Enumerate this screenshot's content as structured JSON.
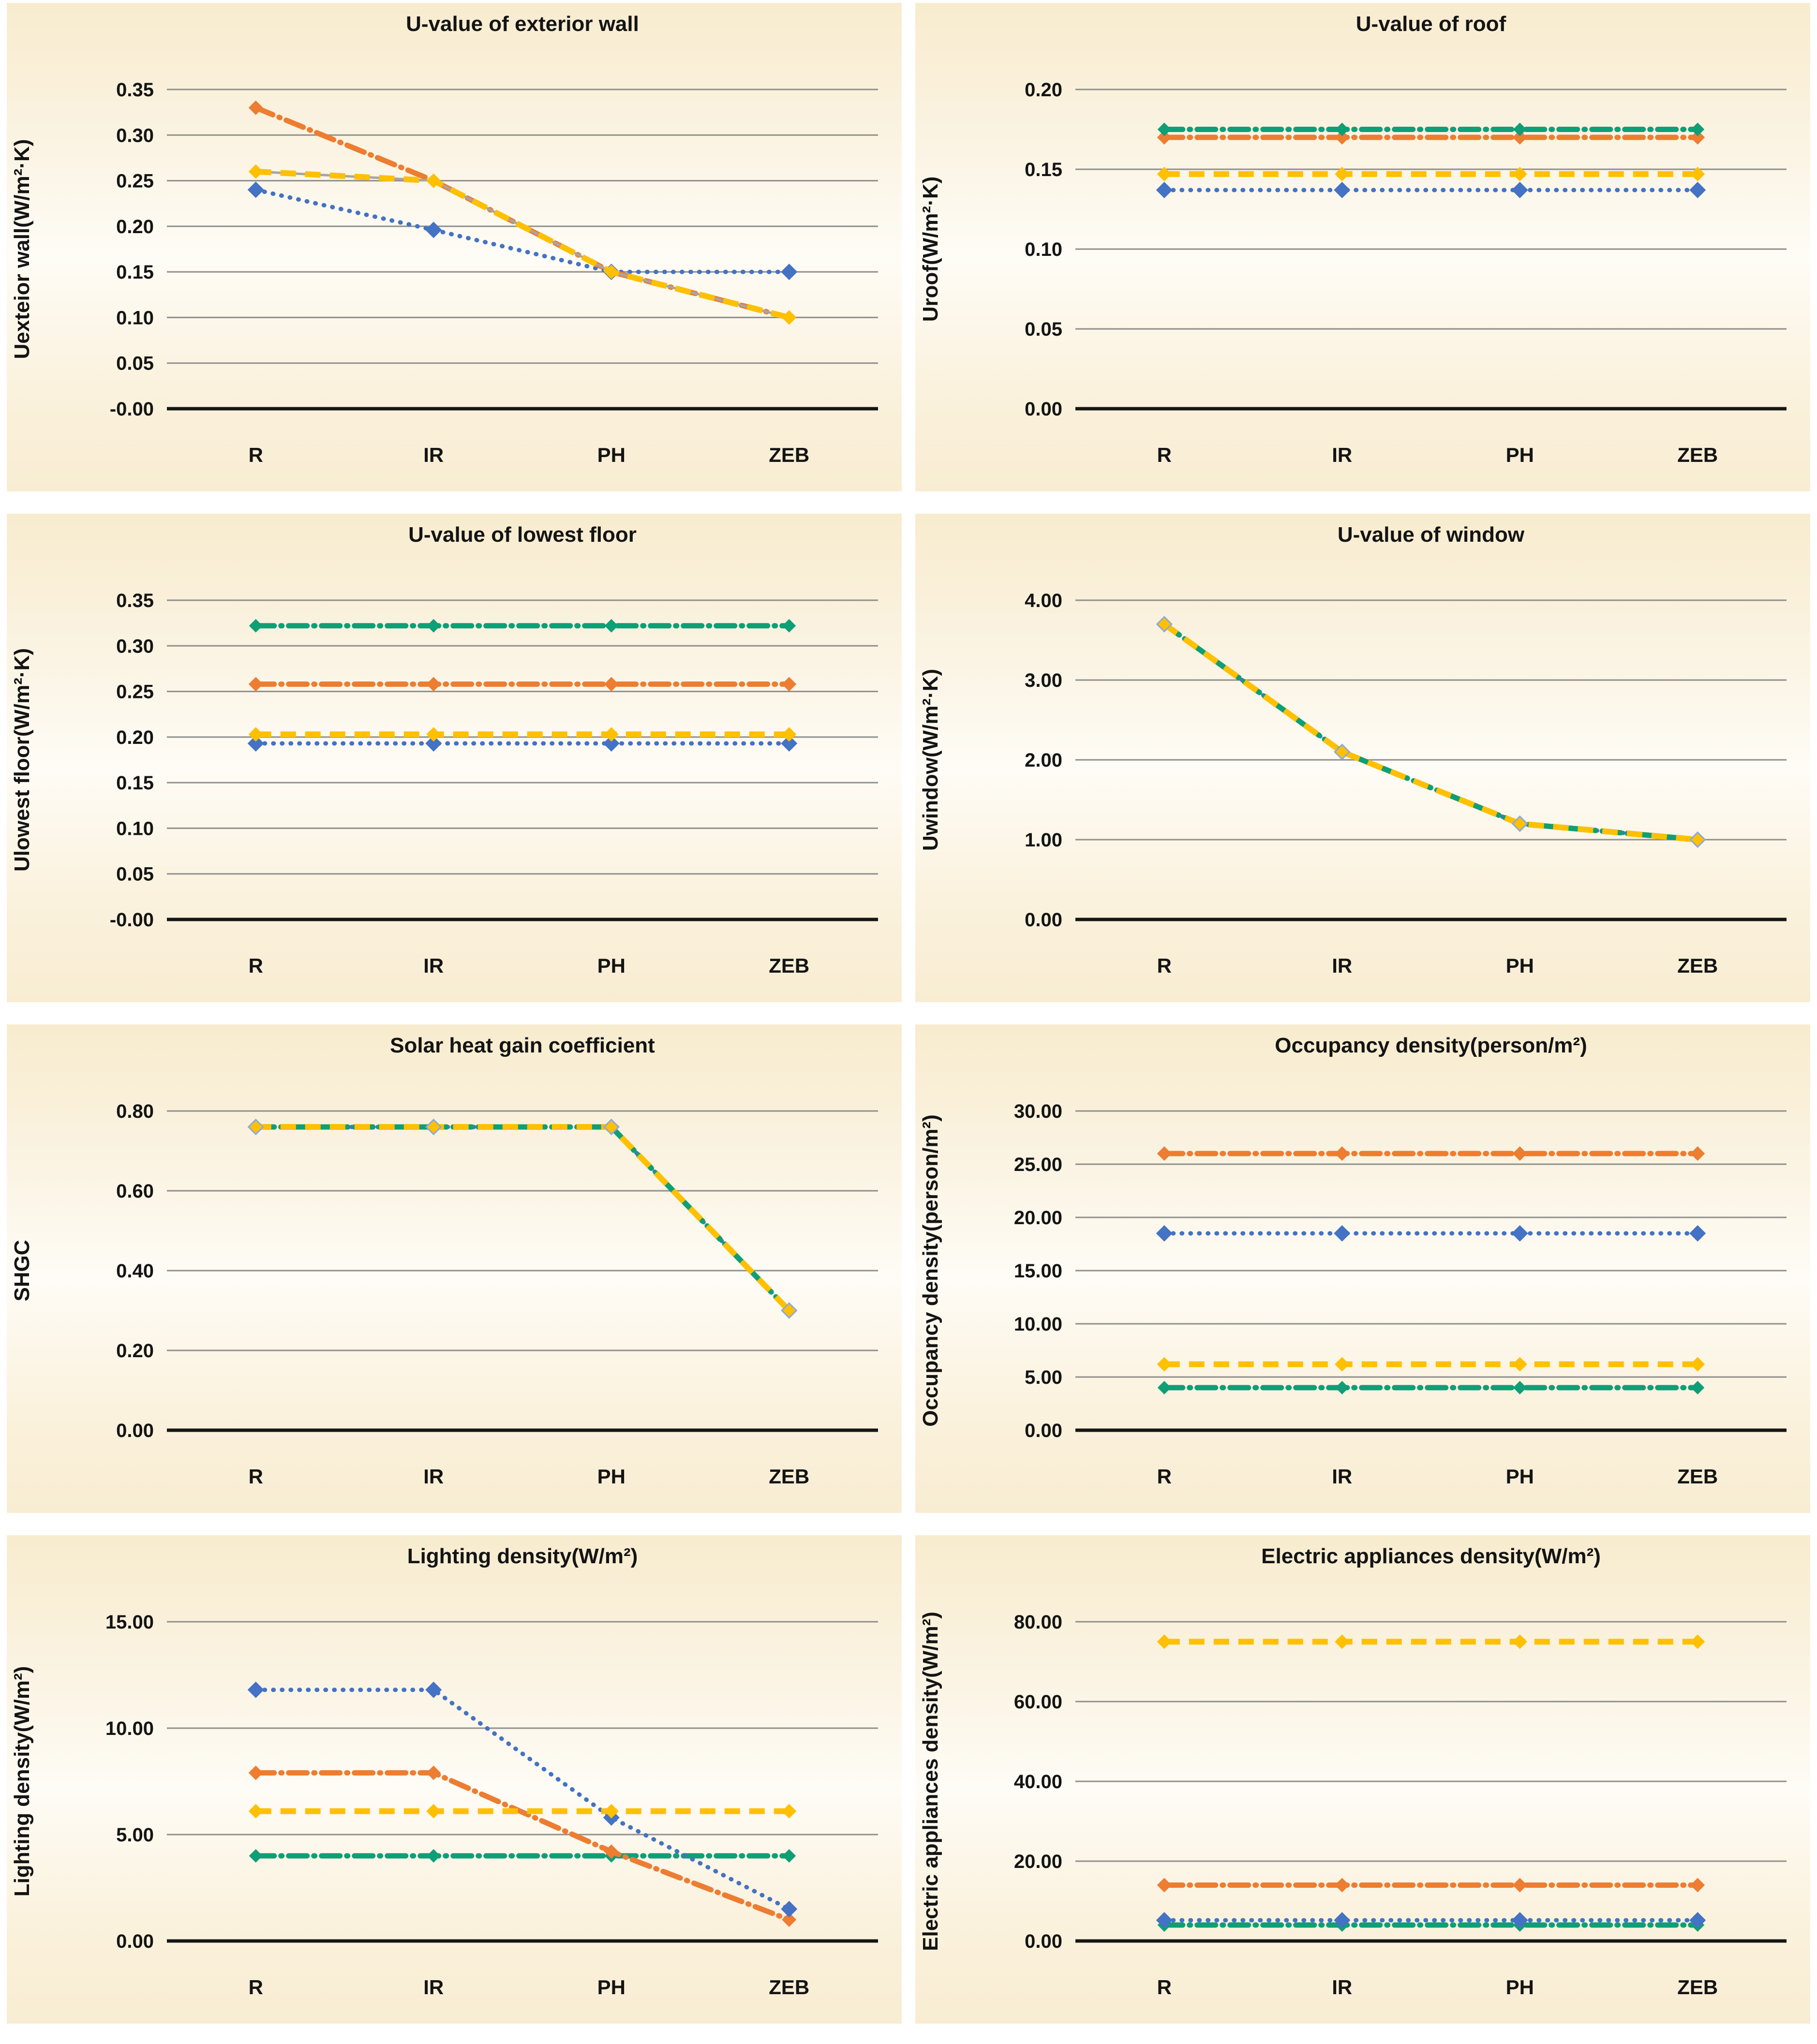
{
  "figure_background": "#FFFFFF",
  "panel_background_gradient": [
    "#F8ECCE",
    "#FBF4E4",
    "#FEFCF6",
    "#FBF2DE",
    "#F8EDD2"
  ],
  "gridline_color": "#8F8F8B",
  "axis_color": "#151515",
  "text_color": "#141414",
  "series_colors": {
    "blue": "#4472C4",
    "orange": "#ED7D31",
    "gray": "#A6A6A6",
    "yellow": "#FFC000",
    "green": "#0E9F76"
  },
  "chart_data": [
    {
      "type": "line",
      "title": "U-value of exterior wall",
      "ylabel": "Uexteior wall(W/m²·K)",
      "xlabel": "",
      "categories": [
        "R",
        "IR",
        "PH",
        "ZEB"
      ],
      "ylim": [
        0,
        0.35
      ],
      "y_step": 0.05,
      "grid": true,
      "legend_position": "none",
      "series": [
        {
          "name": "blue",
          "color": "#4472C4",
          "dash": "dot",
          "values": [
            0.24,
            0.196,
            0.15,
            0.15
          ]
        },
        {
          "name": "orange",
          "color": "#ED7D31",
          "dash": "dashdot",
          "values": [
            0.33,
            0.25,
            0.15,
            0.1
          ]
        },
        {
          "name": "gray",
          "color": "#A6A6A6",
          "dash": "solid",
          "values": [
            0.26,
            0.25,
            0.15,
            0.1
          ]
        },
        {
          "name": "yellow",
          "color": "#FFC000",
          "dash": "dash",
          "values": [
            0.26,
            0.25,
            0.15,
            0.1
          ]
        }
      ]
    },
    {
      "type": "line",
      "title": "U-value of roof",
      "ylabel": "Uroof(W/m²·K)",
      "xlabel": "",
      "categories": [
        "R",
        "IR",
        "PH",
        "ZEB"
      ],
      "ylim": [
        0,
        0.2
      ],
      "y_step": 0.05,
      "grid": true,
      "legend_position": "none",
      "series": [
        {
          "name": "blue",
          "color": "#4472C4",
          "dash": "dot",
          "values": [
            0.137,
            0.137,
            0.137,
            0.137
          ]
        },
        {
          "name": "yellow",
          "color": "#FFC000",
          "dash": "dash",
          "values": [
            0.147,
            0.147,
            0.147,
            0.147
          ]
        },
        {
          "name": "orange",
          "color": "#ED7D31",
          "dash": "dashdot",
          "values": [
            0.17,
            0.17,
            0.17,
            0.17
          ]
        },
        {
          "name": "green",
          "color": "#0E9F76",
          "dash": "dashdot",
          "values": [
            0.175,
            0.175,
            0.175,
            0.175
          ]
        }
      ]
    },
    {
      "type": "line",
      "title": "U-value of lowest floor",
      "ylabel": "Ulowest floor(W/m²·K)",
      "xlabel": "",
      "categories": [
        "R",
        "IR",
        "PH",
        "ZEB"
      ],
      "ylim": [
        0,
        0.35
      ],
      "y_step": 0.05,
      "grid": true,
      "legend_position": "none",
      "series": [
        {
          "name": "blue",
          "color": "#4472C4",
          "dash": "dot",
          "values": [
            0.193,
            0.193,
            0.193,
            0.193
          ]
        },
        {
          "name": "yellow",
          "color": "#FFC000",
          "dash": "dash",
          "values": [
            0.203,
            0.203,
            0.203,
            0.203
          ]
        },
        {
          "name": "orange",
          "color": "#ED7D31",
          "dash": "dashdot",
          "values": [
            0.258,
            0.258,
            0.258,
            0.258
          ]
        },
        {
          "name": "green",
          "color": "#0E9F76",
          "dash": "dashdot",
          "values": [
            0.322,
            0.322,
            0.322,
            0.322
          ]
        }
      ]
    },
    {
      "type": "line",
      "title": "U-value of window",
      "ylabel": "Uwindow(W/m²·K)",
      "xlabel": "",
      "categories": [
        "R",
        "IR",
        "PH",
        "ZEB"
      ],
      "ylim": [
        0,
        4.0
      ],
      "y_step": 1.0,
      "grid": true,
      "legend_position": "none",
      "series": [
        {
          "name": "blue",
          "color": "#4472C4",
          "dash": "dot",
          "values": [
            3.7,
            2.1,
            1.2,
            1.0
          ]
        },
        {
          "name": "orange",
          "color": "#ED7D31",
          "dash": "dashdot",
          "values": [
            3.7,
            2.1,
            1.2,
            1.0
          ]
        },
        {
          "name": "green",
          "color": "#0E9F76",
          "dash": "dashdot",
          "values": [
            3.7,
            2.1,
            1.2,
            1.0
          ]
        },
        {
          "name": "yellow",
          "color": "#FFC000",
          "dash": "dash",
          "values": [
            3.7,
            2.1,
            1.2,
            1.0
          ],
          "marker_outline": "#8EA9DB"
        }
      ]
    },
    {
      "type": "line",
      "title": "Solar heat gain coefficient",
      "ylabel": "SHGC",
      "xlabel": "",
      "categories": [
        "R",
        "IR",
        "PH",
        "ZEB"
      ],
      "ylim": [
        0,
        0.8
      ],
      "y_step": 0.2,
      "grid": true,
      "legend_position": "none",
      "series": [
        {
          "name": "blue",
          "color": "#4472C4",
          "dash": "dot",
          "values": [
            0.76,
            0.76,
            0.76,
            0.3
          ]
        },
        {
          "name": "orange",
          "color": "#ED7D31",
          "dash": "dashdot",
          "values": [
            0.76,
            0.76,
            0.76,
            0.3
          ]
        },
        {
          "name": "green",
          "color": "#0E9F76",
          "dash": "dashdot",
          "values": [
            0.76,
            0.76,
            0.76,
            0.3
          ]
        },
        {
          "name": "yellow",
          "color": "#FFC000",
          "dash": "dash",
          "values": [
            0.76,
            0.76,
            0.76,
            0.3
          ],
          "marker_outline": "#8EA9DB"
        }
      ]
    },
    {
      "type": "line",
      "title": "Occupancy density(person/m²)",
      "ylabel": "Occupancy density(person/m²)",
      "xlabel": "",
      "categories": [
        "R",
        "IR",
        "PH",
        "ZEB"
      ],
      "ylim": [
        0,
        30.0
      ],
      "y_step": 5.0,
      "grid": true,
      "legend_position": "none",
      "series": [
        {
          "name": "green",
          "color": "#0E9F76",
          "dash": "dashdot",
          "values": [
            4.0,
            4.0,
            4.0,
            4.0
          ]
        },
        {
          "name": "yellow",
          "color": "#FFC000",
          "dash": "dash",
          "values": [
            6.2,
            6.2,
            6.2,
            6.2
          ]
        },
        {
          "name": "blue",
          "color": "#4472C4",
          "dash": "dot",
          "values": [
            18.5,
            18.5,
            18.5,
            18.5
          ]
        },
        {
          "name": "orange",
          "color": "#ED7D31",
          "dash": "dashdot",
          "values": [
            26.0,
            26.0,
            26.0,
            26.0
          ]
        }
      ]
    },
    {
      "type": "line",
      "title": "Lighting density(W/m²)",
      "ylabel": "Lighting density(W/m²)",
      "xlabel": "",
      "categories": [
        "R",
        "IR",
        "PH",
        "ZEB"
      ],
      "ylim": [
        0,
        15.0
      ],
      "y_step": 5.0,
      "grid": true,
      "legend_position": "none",
      "series": [
        {
          "name": "green",
          "color": "#0E9F76",
          "dash": "dashdot",
          "values": [
            4.0,
            4.0,
            4.0,
            4.0
          ]
        },
        {
          "name": "orange",
          "color": "#ED7D31",
          "dash": "dashdot",
          "values": [
            7.9,
            7.9,
            4.2,
            1.0
          ]
        },
        {
          "name": "blue",
          "color": "#4472C4",
          "dash": "dot",
          "values": [
            11.8,
            11.8,
            5.8,
            1.5
          ]
        },
        {
          "name": "yellow",
          "color": "#FFC000",
          "dash": "dash",
          "values": [
            6.1,
            6.1,
            6.1,
            6.1
          ]
        }
      ]
    },
    {
      "type": "line",
      "title": "Electric appliances density(W/m²)",
      "ylabel": "Electric appliances density(W/m²)",
      "xlabel": "",
      "categories": [
        "R",
        "IR",
        "PH",
        "ZEB"
      ],
      "ylim": [
        0,
        80.0
      ],
      "y_step": 20.0,
      "grid": true,
      "legend_position": "none",
      "series": [
        {
          "name": "green",
          "color": "#0E9F76",
          "dash": "dashdot",
          "values": [
            4.0,
            4.0,
            4.0,
            4.0
          ]
        },
        {
          "name": "blue",
          "color": "#4472C4",
          "dash": "dot",
          "values": [
            5.2,
            5.2,
            5.2,
            5.2
          ]
        },
        {
          "name": "orange",
          "color": "#ED7D31",
          "dash": "dashdot",
          "values": [
            14.0,
            14.0,
            14.0,
            14.0
          ]
        },
        {
          "name": "yellow",
          "color": "#FFC000",
          "dash": "dash",
          "values": [
            75.0,
            75.0,
            75.0,
            75.0
          ]
        }
      ]
    }
  ]
}
